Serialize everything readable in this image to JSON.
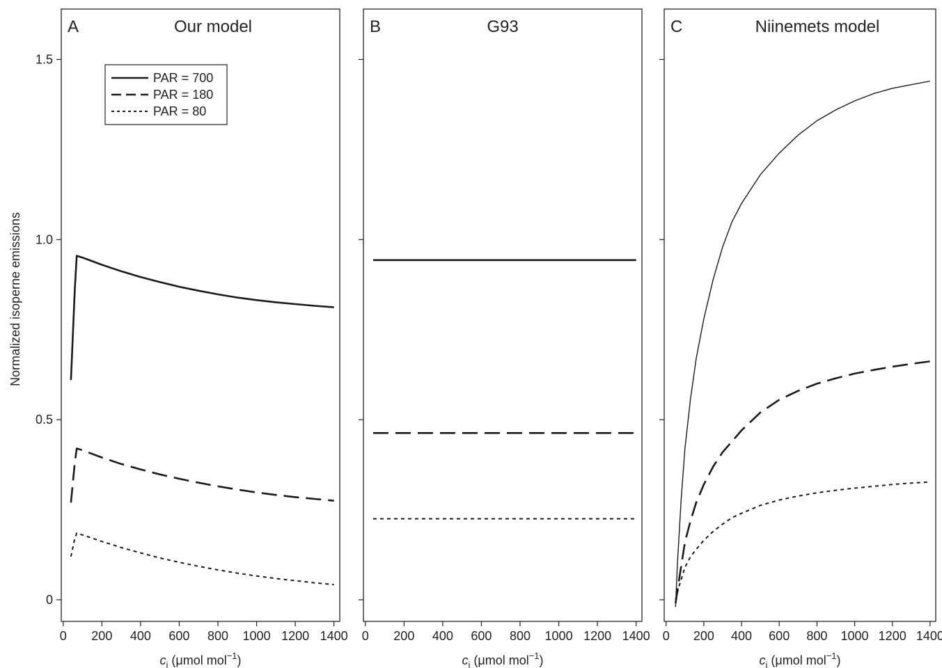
{
  "ylabel": "Normalized isoperne emissions",
  "xlabel_parts": {
    "symbol": "c",
    "subscript": "i",
    "units": " (μmol mol",
    "exponent": "−1",
    "close": ")"
  },
  "legend": [
    {
      "label": "PAR = 700",
      "style": "solid"
    },
    {
      "label": "PAR = 180",
      "style": "dashed"
    },
    {
      "label": "PAR = 80",
      "style": "dotted"
    }
  ],
  "chart_data": [
    {
      "type": "line",
      "letter": "A",
      "title": "Our model",
      "xlim": [
        -10,
        1430
      ],
      "ylim": [
        -0.06,
        1.64
      ],
      "xticks": [
        0,
        200,
        400,
        600,
        800,
        1000,
        1200,
        1400
      ],
      "yticks": [
        0,
        0.5,
        1.0,
        1.5
      ],
      "ytick_labels": [
        "0",
        "0.5",
        "1.0",
        "1.5"
      ],
      "series": [
        {
          "name": "PAR = 700",
          "x": [
            40,
            60,
            70,
            100,
            200,
            300,
            400,
            500,
            600,
            700,
            800,
            900,
            1000,
            1100,
            1200,
            1300,
            1400
          ],
          "y": [
            0.61,
            0.86,
            0.955,
            0.95,
            0.93,
            0.912,
            0.896,
            0.882,
            0.869,
            0.858,
            0.848,
            0.839,
            0.832,
            0.826,
            0.821,
            0.816,
            0.812
          ]
        },
        {
          "name": "PAR = 180",
          "x": [
            40,
            60,
            70,
            100,
            200,
            300,
            400,
            500,
            600,
            700,
            800,
            900,
            1000,
            1100,
            1200,
            1300,
            1400
          ],
          "y": [
            0.27,
            0.38,
            0.42,
            0.415,
            0.395,
            0.377,
            0.362,
            0.348,
            0.336,
            0.325,
            0.315,
            0.306,
            0.298,
            0.291,
            0.285,
            0.28,
            0.275
          ]
        },
        {
          "name": "PAR = 80",
          "x": [
            40,
            60,
            70,
            100,
            200,
            300,
            400,
            500,
            600,
            700,
            800,
            900,
            1000,
            1100,
            1200,
            1300,
            1400
          ],
          "y": [
            0.12,
            0.17,
            0.185,
            0.18,
            0.162,
            0.145,
            0.13,
            0.116,
            0.104,
            0.093,
            0.083,
            0.074,
            0.066,
            0.059,
            0.053,
            0.047,
            0.042
          ]
        }
      ]
    },
    {
      "type": "line",
      "letter": "B",
      "title": "G93",
      "xlim": [
        -10,
        1430
      ],
      "ylim": [
        -0.06,
        1.64
      ],
      "xticks": [
        0,
        200,
        400,
        600,
        800,
        1000,
        1200,
        1400
      ],
      "yticks": [
        0,
        0.5,
        1.0,
        1.5
      ],
      "ytick_labels": [],
      "series": [
        {
          "name": "PAR = 700",
          "x": [
            40,
            1400
          ],
          "y": [
            0.943,
            0.943
          ]
        },
        {
          "name": "PAR = 180",
          "x": [
            40,
            1400
          ],
          "y": [
            0.463,
            0.463
          ]
        },
        {
          "name": "PAR = 80",
          "x": [
            40,
            1400
          ],
          "y": [
            0.225,
            0.225
          ]
        }
      ]
    },
    {
      "type": "line",
      "letter": "C",
      "title": "Niinemets model",
      "xlim": [
        -10,
        1430
      ],
      "ylim": [
        -0.06,
        1.64
      ],
      "xticks": [
        0,
        200,
        400,
        600,
        800,
        1000,
        1200,
        1400
      ],
      "yticks": [
        0,
        0.5,
        1.0,
        1.5
      ],
      "ytick_labels": [],
      "series": [
        {
          "name": "PAR = 700",
          "x": [
            50,
            60,
            80,
            100,
            130,
            160,
            200,
            250,
            300,
            350,
            400,
            500,
            600,
            700,
            800,
            900,
            1000,
            1100,
            1200,
            1300,
            1400
          ],
          "y": [
            -0.02,
            0.1,
            0.28,
            0.42,
            0.56,
            0.67,
            0.78,
            0.89,
            0.98,
            1.05,
            1.1,
            1.18,
            1.24,
            1.29,
            1.33,
            1.36,
            1.385,
            1.405,
            1.42,
            1.43,
            1.44
          ]
        },
        {
          "name": "PAR = 180",
          "x": [
            50,
            70,
            100,
            130,
            160,
            200,
            250,
            300,
            350,
            400,
            500,
            600,
            700,
            800,
            900,
            1000,
            1100,
            1200,
            1300,
            1400
          ],
          "y": [
            -0.01,
            0.06,
            0.16,
            0.22,
            0.27,
            0.32,
            0.37,
            0.41,
            0.44,
            0.47,
            0.52,
            0.555,
            0.58,
            0.6,
            0.615,
            0.628,
            0.638,
            0.647,
            0.655,
            0.662
          ]
        },
        {
          "name": "PAR = 80",
          "x": [
            50,
            70,
            100,
            130,
            160,
            200,
            250,
            300,
            350,
            400,
            500,
            600,
            700,
            800,
            900,
            1000,
            1100,
            1200,
            1300,
            1400
          ],
          "y": [
            0.0,
            0.04,
            0.09,
            0.12,
            0.14,
            0.165,
            0.19,
            0.21,
            0.228,
            0.24,
            0.262,
            0.277,
            0.288,
            0.297,
            0.304,
            0.31,
            0.315,
            0.32,
            0.324,
            0.327
          ]
        }
      ]
    }
  ]
}
